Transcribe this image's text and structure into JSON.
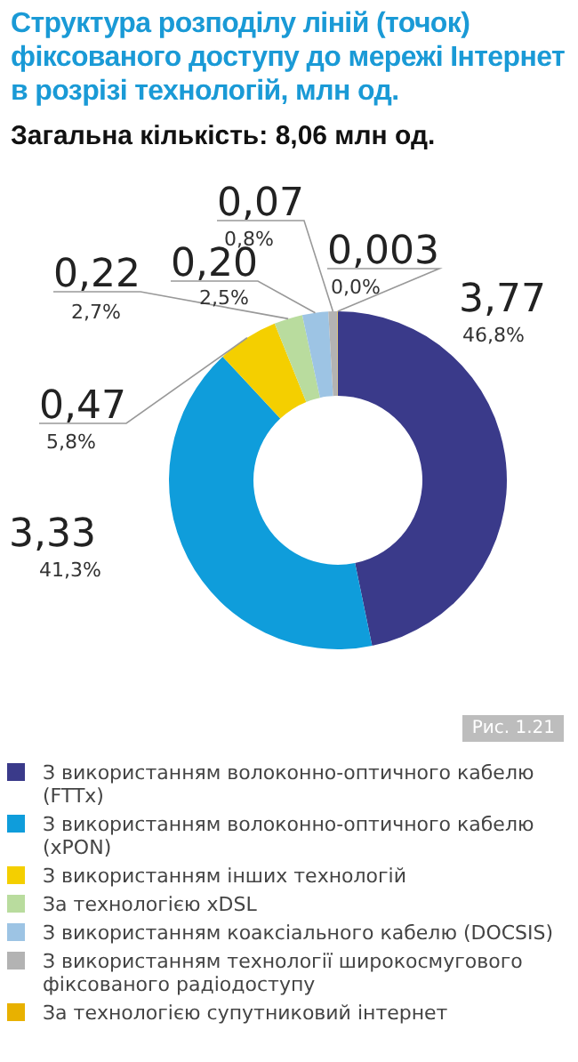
{
  "chart_data": {
    "type": "donut",
    "title": "Структура розподілу ліній (точок) фіксованого доступу до мережі Інтернет в розрізі технологій, млн од.",
    "subtitle": "Загальна кількість: 8,06 млн од.",
    "categories": [
      "З використанням волоконно-оптичного кабелю (FTTx)",
      "З використанням волоконно-оптичного кабелю (xPON)",
      "З використанням інших технологій",
      "За технологією xDSL",
      "З використанням коаксіального кабелю (DOCSIS)",
      "З використанням технології широкосмугового фіксованого радіодоступу",
      "За технологією супутниковий інтернет"
    ],
    "values": [
      3.77,
      3.33,
      0.47,
      0.22,
      0.2,
      0.07,
      0.003
    ],
    "value_labels": [
      "3,77",
      "3,33",
      "0,47",
      "0,22",
      "0,20",
      "0,07",
      "0,003"
    ],
    "colors": [
      "#3a3a8a",
      "#0f9ddb",
      "#f4cf00",
      "#b9dc9e",
      "#9dc4e4",
      "#b3b3b3",
      "#e8b100"
    ],
    "legend": "bottom",
    "annotations": [
      "Рис. 1.21",
      {
        "text": "46,8%",
        "x": "З використанням волоконно-оптичного кабелю (FTTx)"
      },
      {
        "text": "41,3%",
        "x": "З використанням волоконно-оптичного кабелю (xPON)"
      },
      {
        "text": "5,8%",
        "x": "З використанням інших технологій"
      },
      {
        "text": "2,7%",
        "x": "За технологією xDSL"
      },
      {
        "text": "2,5%",
        "x": "З використанням коаксіального кабелю (DOCSIS)"
      },
      {
        "text": "0,8%",
        "x": "З використанням технології широкосмугового фіксованого радіодоступу"
      },
      {
        "text": "0,0%",
        "x": "За технологією супутниковий інтернет"
      }
    ]
  }
}
